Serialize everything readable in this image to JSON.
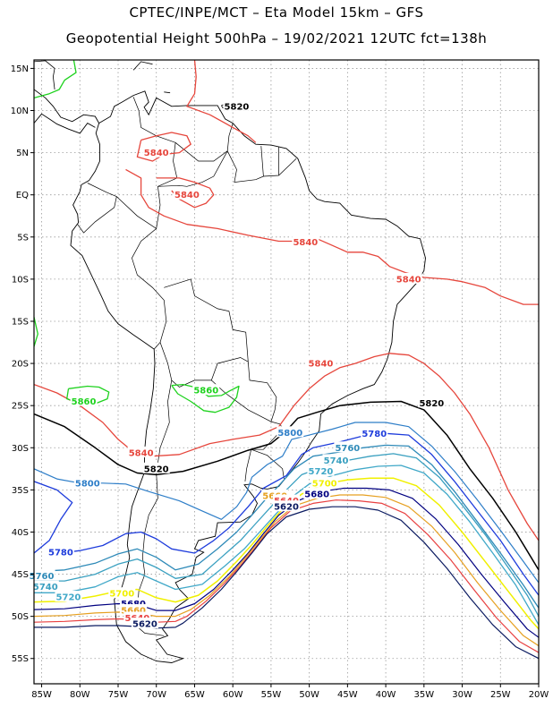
{
  "title_line1": "CPTEC/INPE/MCT –  Eta Model 15km – GFS",
  "title_line2": "Geopotential Height 500hPa – 19/02/2021 12UTC fct=138h",
  "lat_ticks": [
    "15N",
    "10N",
    "5N",
    "EQ",
    "5S",
    "10S",
    "15S",
    "20S",
    "25S",
    "30S",
    "35S",
    "40S",
    "45S",
    "50S",
    "55S"
  ],
  "lon_ticks": [
    "85W",
    "80W",
    "75W",
    "70W",
    "65W",
    "60W",
    "55W",
    "50W",
    "45W",
    "40W",
    "35W",
    "30W",
    "25W",
    "20W"
  ],
  "map_extent": {
    "lon_min": -86,
    "lon_max": -20,
    "lat_min": -58,
    "lat_max": 16
  },
  "contour_colors": {
    "5860": "#1ed21e",
    "5840": "#e6463c",
    "5820": "#000000",
    "5800": "#2e7ec8",
    "5780": "#1e3cdc",
    "5760": "#2e8ab8",
    "5740": "#3aa0c0",
    "5720": "#40a8c8",
    "5700": "#f0f000",
    "5680": "#000080",
    "5660": "#e6a020",
    "5640": "#e84040",
    "5620": "#0a1a60"
  },
  "contour_labels": [
    {
      "text": "5820",
      "lon": -59.5,
      "lat": 10.5,
      "level": "5820"
    },
    {
      "text": "5840",
      "lon": -70,
      "lat": 5,
      "level": "5840"
    },
    {
      "text": "5840",
      "lon": -66,
      "lat": 0,
      "level": "5840"
    },
    {
      "text": "5840",
      "lon": -50.5,
      "lat": -5.6,
      "level": "5840"
    },
    {
      "text": "5840",
      "lon": -37,
      "lat": -10,
      "level": "5840"
    },
    {
      "text": "5840",
      "lon": -48.5,
      "lat": -20,
      "level": "5840"
    },
    {
      "text": "5820",
      "lon": -34,
      "lat": -24.7,
      "level": "5820"
    },
    {
      "text": "5860",
      "lon": -79.5,
      "lat": -24.5,
      "level": "5860"
    },
    {
      "text": "5860",
      "lon": -63.5,
      "lat": -23.2,
      "level": "5860"
    },
    {
      "text": "5800",
      "lon": -52.5,
      "lat": -28.2,
      "level": "5800"
    },
    {
      "text": "5780",
      "lon": -41.5,
      "lat": -28.3,
      "level": "5780"
    },
    {
      "text": "5760",
      "lon": -45,
      "lat": -30,
      "level": "5760"
    },
    {
      "text": "5740",
      "lon": -46.5,
      "lat": -31.5,
      "level": "5740"
    },
    {
      "text": "5720",
      "lon": -48.5,
      "lat": -32.8,
      "level": "5720"
    },
    {
      "text": "5700",
      "lon": -48,
      "lat": -34.2,
      "level": "5700"
    },
    {
      "text": "5680",
      "lon": -49,
      "lat": -35.5,
      "level": "5680"
    },
    {
      "text": "5840",
      "lon": -72,
      "lat": -30.6,
      "level": "5840"
    },
    {
      "text": "5820",
      "lon": -70,
      "lat": -32.5,
      "level": "5820"
    },
    {
      "text": "5800",
      "lon": -79,
      "lat": -34.2,
      "level": "5800"
    },
    {
      "text": "5780",
      "lon": -82.5,
      "lat": -42.4,
      "level": "5780"
    },
    {
      "text": "5760",
      "lon": -85,
      "lat": -45.2,
      "level": "5760"
    },
    {
      "text": "5740",
      "lon": -84.5,
      "lat": -46.5,
      "level": "5740"
    },
    {
      "text": "5720",
      "lon": -81.5,
      "lat": -47.7,
      "level": "5720"
    },
    {
      "text": "5700",
      "lon": -74.5,
      "lat": -47.3,
      "level": "5700"
    },
    {
      "text": "5680",
      "lon": -73,
      "lat": -48.5,
      "level": "5680"
    },
    {
      "text": "5660",
      "lon": -54.5,
      "lat": -35.7,
      "level": "5660"
    },
    {
      "text": "5640",
      "lon": -53,
      "lat": -36.3,
      "level": "5640"
    },
    {
      "text": "5620",
      "lon": -53,
      "lat": -37,
      "level": "5620"
    },
    {
      "text": "5660",
      "lon": -73,
      "lat": -49.3,
      "level": "5660"
    },
    {
      "text": "5640",
      "lon": -72.5,
      "lat": -50.2,
      "level": "5640"
    },
    {
      "text": "5620",
      "lon": -71.5,
      "lat": -50.9,
      "level": "5620"
    }
  ]
}
